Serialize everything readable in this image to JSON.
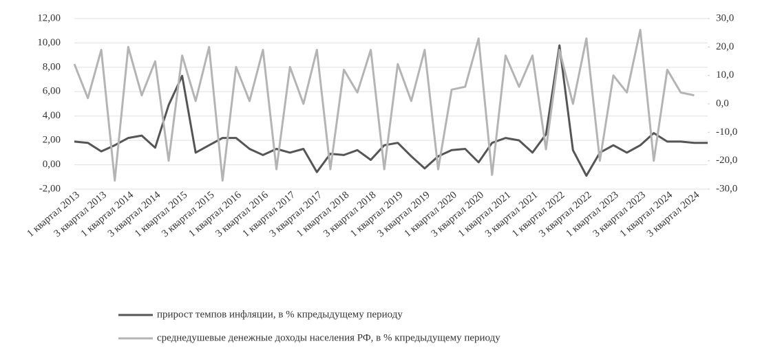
{
  "chart_data": {
    "type": "line",
    "categories": [
      "1 квартал 2013",
      null,
      "3 квартал 2013",
      null,
      "1 квартал 2014",
      null,
      "3 квартал 2014",
      null,
      "1 квартал 2015",
      null,
      "3 квартал 2015",
      null,
      "1 квартал 2016",
      null,
      "3 квартал 2016",
      null,
      "1 квартал 2017",
      null,
      "3 квартал 2017",
      null,
      "1 квартал 2018",
      null,
      "3 квартал 2018",
      null,
      "1 квартал 2019",
      null,
      "3 квартал 2019",
      null,
      "1 квартал 2020",
      null,
      "3 квартал 2020",
      null,
      "1 квартал 2021",
      null,
      "3 квартал 2021",
      null,
      "1 квартал 2022",
      null,
      "3 квартал 2022",
      null,
      "1 квартал 2023",
      null,
      "3 квартал 2023",
      null,
      "1 квартал 2024",
      null,
      "3 квартал 2024",
      null
    ],
    "series": [
      {
        "name": "прирост темпов инфляции, в % кпредыдущему периоду",
        "color": "#555555",
        "values": [
          1.9,
          1.8,
          1.1,
          1.6,
          2.2,
          2.4,
          1.4,
          4.9,
          7.3,
          1.0,
          1.6,
          2.2,
          2.2,
          1.3,
          0.8,
          1.3,
          1.0,
          1.3,
          -0.6,
          0.9,
          0.8,
          1.2,
          0.4,
          1.6,
          1.8,
          0.7,
          -0.3,
          0.7,
          1.2,
          1.3,
          0.2,
          1.8,
          2.2,
          2.0,
          1.0,
          2.5,
          9.8,
          1.2,
          -0.9,
          1.0,
          1.6,
          1.0,
          1.6,
          2.6,
          1.9,
          1.9,
          1.8,
          1.8
        ]
      },
      {
        "name": "среднедушевые денежные доходы населения РФ, в % кпредыдущему периоду",
        "color": "#b4b4b4",
        "axis": "y2",
        "values": [
          14,
          2,
          19,
          -27,
          20,
          3,
          15,
          -20,
          17,
          1,
          20,
          -27,
          13,
          1,
          19,
          -23,
          13,
          0,
          19,
          -23,
          12,
          4,
          19,
          -23,
          14,
          1,
          19,
          -23,
          5,
          6,
          23,
          -25,
          17,
          6,
          17,
          -16,
          19,
          0,
          23,
          -20,
          10,
          4,
          26,
          -20,
          12,
          4,
          3,
          null
        ]
      }
    ],
    "ylim": [
      -2,
      12
    ],
    "yticks": [
      {
        "value": -2,
        "label": "-2,00"
      },
      {
        "value": 0,
        "label": "0,00"
      },
      {
        "value": 2,
        "label": "2,00"
      },
      {
        "value": 4,
        "label": "4,00"
      },
      {
        "value": 6,
        "label": "6,00"
      },
      {
        "value": 8,
        "label": "8,00"
      },
      {
        "value": 10,
        "label": "10,00"
      },
      {
        "value": 12,
        "label": "12,00"
      }
    ],
    "y2lim": [
      -30,
      30
    ],
    "y2ticks": [
      {
        "value": -30,
        "label": "-30,0"
      },
      {
        "value": -20,
        "label": "-20,0"
      },
      {
        "value": -10,
        "label": "-10,0"
      },
      {
        "value": 0,
        "label": "0,0"
      },
      {
        "value": 10,
        "label": "10,0"
      },
      {
        "value": 20,
        "label": "20,0"
      },
      {
        "value": 30,
        "label": "30,0"
      }
    ],
    "grid": true
  }
}
